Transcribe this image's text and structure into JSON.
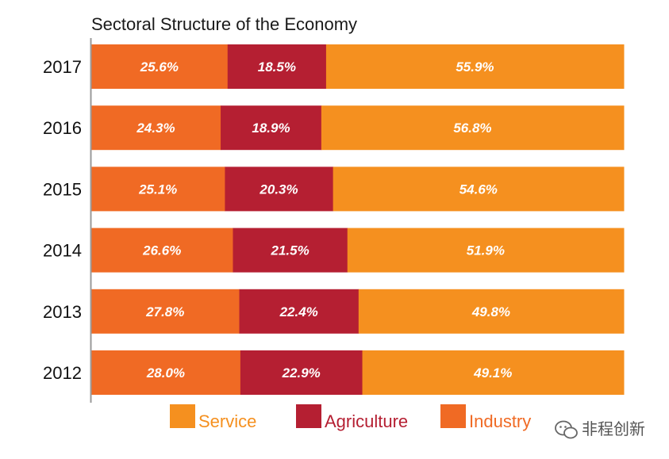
{
  "chart_data": {
    "type": "bar",
    "orientation": "horizontal",
    "stacked": true,
    "title": "Sectoral Structure of the Economy",
    "categories": [
      "2017",
      "2016",
      "2015",
      "2014",
      "2013",
      "2012"
    ],
    "series": [
      {
        "name": "Industry",
        "color": "#f06a24",
        "values": [
          25.6,
          24.3,
          25.1,
          26.6,
          27.8,
          28.0
        ],
        "labels": [
          "25.6%",
          "24.3%",
          "25.1%",
          "26.6%",
          "27.8%",
          "28.0%"
        ]
      },
      {
        "name": "Agriculture",
        "color": "#b51f32",
        "values": [
          18.5,
          18.9,
          20.3,
          21.5,
          22.4,
          22.9
        ],
        "labels": [
          "18.5%",
          "18.9%",
          "20.3%",
          "21.5%",
          "22.4%",
          "22.9%"
        ]
      },
      {
        "name": "Service",
        "color": "#f5901f",
        "values": [
          55.9,
          56.8,
          54.6,
          51.9,
          49.8,
          49.1
        ],
        "labels": [
          "55.9%",
          "56.8%",
          "54.6%",
          "51.9%",
          "49.8%",
          "49.1%"
        ]
      }
    ],
    "legend": {
      "placement": "bottom",
      "order": [
        "Service",
        "Agriculture",
        "Industry"
      ]
    },
    "grid": false
  },
  "watermark": {
    "text": "非程创新",
    "icon": "wechat-icon"
  }
}
